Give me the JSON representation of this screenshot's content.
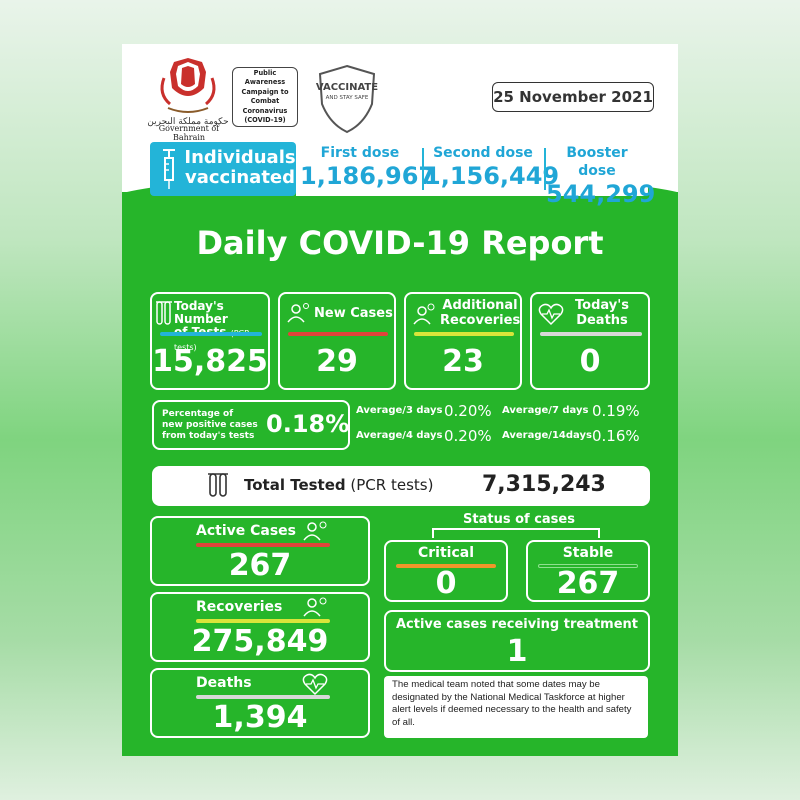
{
  "header": {
    "government": "Government of Bahrain",
    "campaign": "Public Awareness Campaign to Combat Coronavirus (COVID-19)",
    "vaccinate": "VACCINATE",
    "stay_safe": "AND STAY SAFE",
    "date": "25 November 2021"
  },
  "vaccination": {
    "label_line1": "Individuals",
    "label_line2": "vaccinated",
    "first_dose_label": "First dose",
    "first_dose": "1,186,967",
    "second_dose_label": "Second dose",
    "second_dose": "1,156,449",
    "booster_dose_label": "Booster dose",
    "booster_dose": "544,299"
  },
  "title": "Daily COVID-19 Report",
  "today": {
    "tests_label_line1": "Today's Number",
    "tests_label_line2": "of Tests",
    "tests_unit": "(PCR tests)",
    "tests": "15,825",
    "new_cases_label": "New Cases",
    "new_cases": "29",
    "recoveries_label_line1": "Additional",
    "recoveries_label_line2": "Recoveries",
    "recoveries": "23",
    "deaths_label_line1": "Today's",
    "deaths_label_line2": "Deaths",
    "deaths": "0"
  },
  "positivity": {
    "label_line1": "Percentage of",
    "label_line2": "new positive cases",
    "label_line3": "from today's tests",
    "value": "0.18%",
    "avg3_label": "Average/3 days",
    "avg3": "0.20%",
    "avg4_label": "Average/4 days",
    "avg4": "0.20%",
    "avg7_label": "Average/7 days",
    "avg7": "0.19%",
    "avg14_label": "Average/14days",
    "avg14": "0.16%"
  },
  "total_tested": {
    "label": "Total Tested",
    "unit": "(PCR tests)",
    "value": "7,315,243"
  },
  "cumulative": {
    "active_label": "Active Cases",
    "active": "267",
    "recoveries_label": "Recoveries",
    "recoveries": "275,849",
    "deaths_label": "Deaths",
    "deaths": "1,394"
  },
  "status": {
    "title": "Status of cases",
    "critical_label": "Critical",
    "critical": "0",
    "stable_label": "Stable",
    "stable": "267",
    "treatment_label": "Active cases receiving treatment",
    "treatment": "1"
  },
  "note": "The medical team noted that some dates may be designated by the National Medical Taskforce at higher alert levels if deemed necessary to the health and safety of all.",
  "colors": {
    "green": "#26b52a",
    "blue": "#23b4d8",
    "red": "#e0443a",
    "yellow": "#d9e53a",
    "orange": "#f0962a",
    "grey": "#d8d8d8"
  }
}
